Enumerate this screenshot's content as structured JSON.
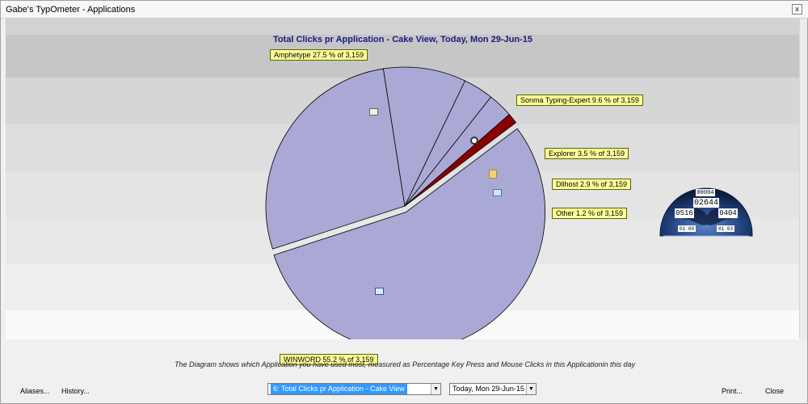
{
  "window": {
    "title": "Gabe's TypOmeter - Applications",
    "close_glyph": "x"
  },
  "chart_data": {
    "type": "pie",
    "title": "Total Clicks pr Application - Cake View, Today, Mon 29-Jun-15",
    "total": 3159,
    "slices": [
      {
        "label": "WINWORD",
        "percent": 55.2,
        "text": "WINWORD 55.2 % of 3,159",
        "color": "#aaa8d4",
        "icon": "word-icon"
      },
      {
        "label": "Amphetype",
        "percent": 27.5,
        "text": "Amphetype 27.5 % of 3,159",
        "color": "#aaa8d4",
        "icon": "amphetype-icon"
      },
      {
        "label": "Sonma Typing-Expert",
        "percent": 9.6,
        "text": "Sonma Typing-Expert 9.6 % of 3,159",
        "color": "#aaa8d4",
        "icon": "typing-expert-icon"
      },
      {
        "label": "Explorer",
        "percent": 3.5,
        "text": "Explorer 3.5 % of 3,159",
        "color": "#aaa8d4",
        "icon": "folder-icon"
      },
      {
        "label": "Dllhost",
        "percent": 2.9,
        "text": "Dllhost 2.9 % of 3,159",
        "color": "#aaa8d4",
        "icon": "dllhost-icon"
      },
      {
        "label": "Other",
        "percent": 1.2,
        "text": "Other 1.2 % of 3,159",
        "color": "#8b0000",
        "icon": ""
      }
    ],
    "exploded_slice": "WINWORD"
  },
  "gauge": {
    "top": "00004",
    "middle": "02644",
    "left": "0516",
    "right": "0404",
    "bottom_left": "01 00",
    "bottom_right": "01 03"
  },
  "description": "The Diagram shows which Application you have used most, measured as Percentage Key Press and Mouse Clicks in this Applicationin this day",
  "footer": {
    "aliases": "Aliases...",
    "history": "History...",
    "view_select": "6: Total Clicks pr Application - Cake View",
    "date_select": "Today, Mon 29-Jun-15",
    "print": "Print...",
    "close": "Close"
  },
  "colors": {
    "title": "#1a1a80",
    "slice": "#aaa8d4",
    "other": "#8b0000",
    "callout_bg": "#ffff99"
  }
}
